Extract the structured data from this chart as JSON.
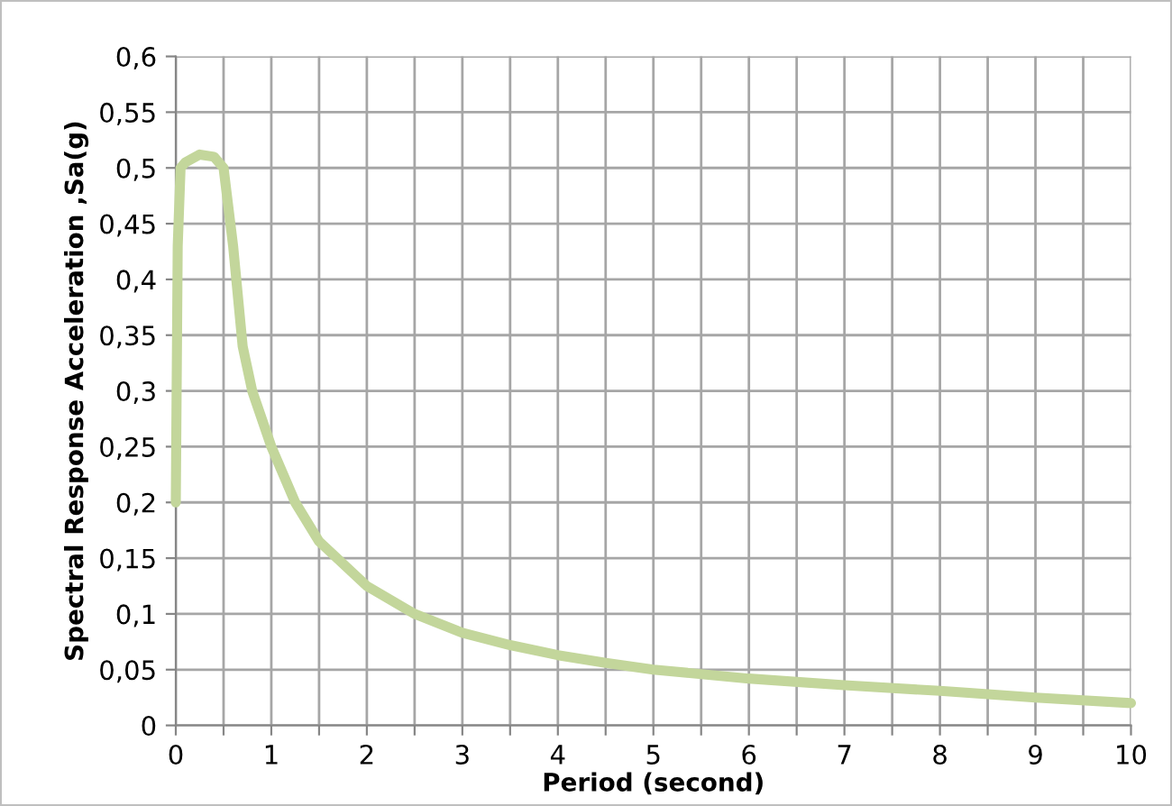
{
  "chart_data": {
    "type": "line",
    "xlabel": "Period (second)",
    "ylabel": "Spectral Response Acceleration ,Sa(g)",
    "series": [
      {
        "color": "#c3d69b",
        "x": [
          0,
          0.02,
          0.05,
          0.1,
          0.25,
          0.4,
          0.5,
          0.6,
          0.7,
          0.8,
          1,
          1.25,
          1.5,
          2,
          2.5,
          3,
          3.5,
          4,
          4.5,
          5,
          6,
          7,
          8,
          9,
          10
        ],
        "values": [
          0.2,
          0.43,
          0.5,
          0.505,
          0.512,
          0.51,
          0.5,
          0.43,
          0.34,
          0.3,
          0.25,
          0.2,
          0.165,
          0.125,
          0.1,
          0.083,
          0.072,
          0.063,
          0.056,
          0.05,
          0.042,
          0.036,
          0.031,
          0.025,
          0.02
        ]
      }
    ],
    "xlim": [
      0,
      10
    ],
    "xticks": [
      0,
      {
        "value": 0.5,
        "label": null
      },
      1,
      {
        "value": 1.5,
        "label": null
      },
      2,
      {
        "value": 2.5,
        "label": null
      },
      3,
      {
        "value": 3.5,
        "label": null
      },
      4,
      {
        "value": 4.5,
        "label": null
      },
      5,
      {
        "value": 5.5,
        "label": null
      },
      6,
      {
        "value": 6.5,
        "label": null
      },
      7,
      {
        "value": 7.5,
        "label": null
      },
      8,
      {
        "value": 8.5,
        "label": null
      },
      9,
      {
        "value": 9.5,
        "label": null
      },
      10
    ],
    "ylim": [
      0,
      0.6
    ],
    "yticks": [
      0,
      {
        "value": 0.05,
        "label": "0,05"
      },
      {
        "value": 0.1,
        "label": "0,1"
      },
      {
        "value": 0.15,
        "label": "0,15"
      },
      {
        "value": 0.2,
        "label": "0,2"
      },
      {
        "value": 0.25,
        "label": "0,25"
      },
      {
        "value": 0.3,
        "label": "0,3"
      },
      {
        "value": 0.35,
        "label": "0,35"
      },
      {
        "value": 0.4,
        "label": "0,4"
      },
      {
        "value": 0.45,
        "label": "0,45"
      },
      {
        "value": 0.5,
        "label": "0,5"
      },
      {
        "value": 0.55,
        "label": "0,55"
      },
      {
        "value": 0.6,
        "label": "0,6"
      }
    ],
    "grid": true,
    "legend": false,
    "marker": "none",
    "line_style": "solid"
  }
}
